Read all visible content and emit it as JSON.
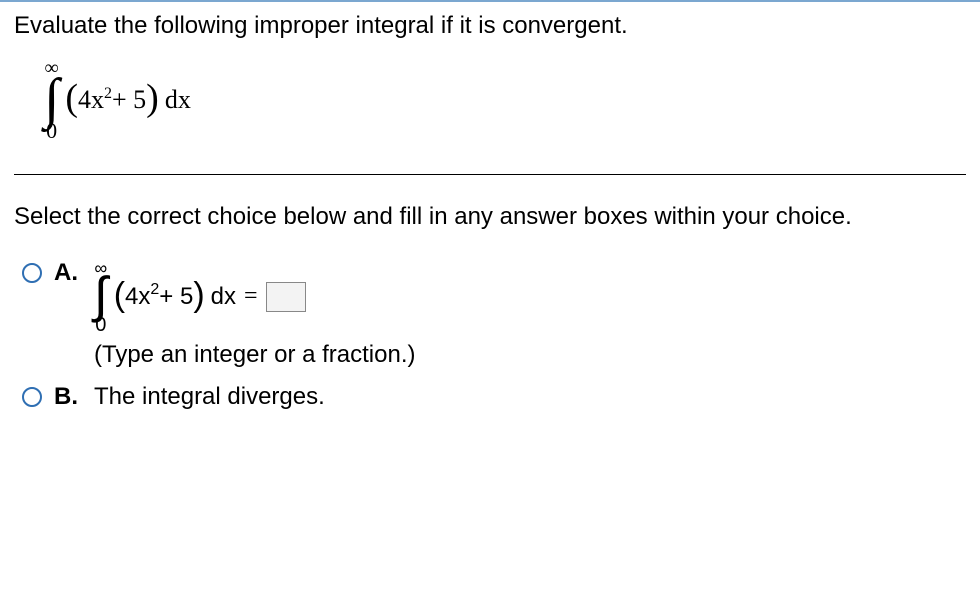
{
  "colors": {
    "top_border": "#7ba7d0",
    "radio_border": "#2f6fb3",
    "text": "#000000",
    "answer_box_bg": "#f3f3f3",
    "answer_box_border": "#888888",
    "background": "#ffffff"
  },
  "question": {
    "prompt": "Evaluate the following improper integral if it is convergent.",
    "integral": {
      "upper": "∞",
      "lower": "0",
      "lparen": "(",
      "coef": "4x",
      "exp": "2",
      "plus": " + 5",
      "rparen": ")",
      "dx": " dx"
    }
  },
  "instruction": "Select the correct choice below and fill in any answer boxes within your choice.",
  "choices": {
    "A": {
      "label": "A.",
      "integral": {
        "upper": "∞",
        "lower": "0",
        "lparen": "(",
        "coef": "4x",
        "exp": "2",
        "plus": " + 5",
        "rparen": ")",
        "dx": " dx",
        "equals": "="
      },
      "hint": "(Type an integer or a fraction.)"
    },
    "B": {
      "label": "B.",
      "text": "The integral diverges."
    }
  }
}
